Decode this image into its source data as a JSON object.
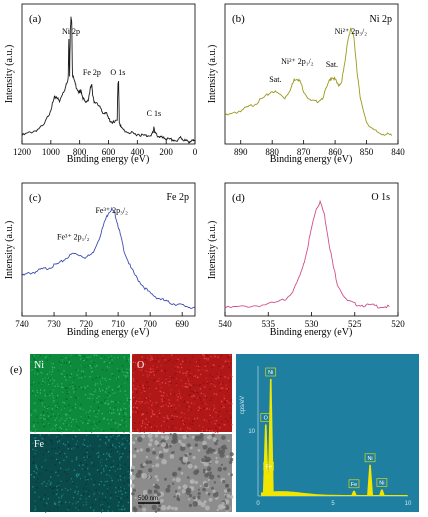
{
  "chart_data": [
    {
      "panel": "(a)",
      "type": "line",
      "title": "",
      "xlabel": "Binding energy (eV)",
      "ylabel": "Intensity (a.u.)",
      "xlim": [
        1200,
        0
      ],
      "xticks": [
        1200,
        1000,
        800,
        600,
        400,
        200,
        0
      ],
      "color": "#1a1a1a",
      "annotations": [
        {
          "text": "Ni 2p",
          "x": 860
        },
        {
          "text": "Fe 2p",
          "x": 715
        },
        {
          "text": "O 1s",
          "x": 535
        },
        {
          "text": "C 1s",
          "x": 285
        }
      ],
      "x": [
        1200,
        1150,
        1100,
        1050,
        1010,
        990,
        975,
        960,
        940,
        920,
        900,
        880,
        875,
        870,
        865,
        860,
        855,
        850,
        835,
        820,
        800,
        790,
        780,
        760,
        740,
        725,
        715,
        710,
        700,
        680,
        660,
        640,
        620,
        600,
        580,
        560,
        540,
        535,
        530,
        525,
        510,
        480,
        450,
        420,
        390,
        360,
        330,
        300,
        290,
        285,
        280,
        260,
        240,
        220,
        200,
        180,
        150,
        120,
        100,
        80,
        60,
        40,
        20,
        0
      ],
      "y": [
        0.06,
        0.08,
        0.1,
        0.13,
        0.22,
        0.28,
        0.33,
        0.34,
        0.3,
        0.36,
        0.4,
        0.46,
        0.76,
        0.48,
        0.82,
        0.9,
        0.86,
        0.5,
        0.44,
        0.4,
        0.36,
        0.38,
        0.34,
        0.29,
        0.32,
        0.4,
        0.42,
        0.36,
        0.29,
        0.3,
        0.26,
        0.22,
        0.23,
        0.18,
        0.16,
        0.15,
        0.17,
        0.42,
        0.44,
        0.16,
        0.11,
        0.09,
        0.08,
        0.07,
        0.07,
        0.06,
        0.06,
        0.07,
        0.08,
        0.13,
        0.08,
        0.06,
        0.05,
        0.04,
        0.04,
        0.03,
        0.03,
        0.02,
        0.05,
        0.03,
        0.02,
        0.02,
        0.02,
        0.02
      ]
    },
    {
      "panel": "(b)",
      "type": "line",
      "title": "Ni 2p",
      "xlabel": "Binding energy (eV)",
      "ylabel": "Intensity (a.u.)",
      "xlim": [
        895,
        840
      ],
      "xticks": [
        890,
        880,
        870,
        860,
        850,
        840
      ],
      "color": "#9a9a1e",
      "annotations": [
        {
          "text": "Sat.",
          "x": 879
        },
        {
          "text": "Ni²⁺ 2p₁/₂",
          "x": 872
        },
        {
          "text": "Sat.",
          "x": 861
        },
        {
          "text": "Ni²⁺ 2p₃/₂",
          "x": 855
        }
      ],
      "x": [
        895,
        892,
        890,
        888,
        886,
        884,
        882,
        880,
        878,
        876,
        874,
        873,
        872,
        871,
        870,
        868,
        866,
        864,
        862,
        861,
        860,
        859,
        858,
        857,
        856,
        855,
        854,
        853,
        852,
        850,
        848,
        846,
        844,
        842
      ],
      "y": [
        0.2,
        0.22,
        0.24,
        0.26,
        0.28,
        0.31,
        0.34,
        0.38,
        0.36,
        0.33,
        0.4,
        0.46,
        0.47,
        0.44,
        0.38,
        0.31,
        0.3,
        0.33,
        0.44,
        0.48,
        0.46,
        0.42,
        0.44,
        0.56,
        0.74,
        0.82,
        0.76,
        0.52,
        0.32,
        0.16,
        0.1,
        0.08,
        0.07,
        0.06
      ]
    },
    {
      "panel": "(c)",
      "type": "line",
      "title": "Fe 2p",
      "xlabel": "Binding energy (eV)",
      "ylabel": "Intensity (a.u.)",
      "xlim": [
        740,
        686
      ],
      "xticks": [
        740,
        730,
        720,
        710,
        700,
        690
      ],
      "color": "#3d4fb0",
      "annotations": [
        {
          "text": "Fe³⁺ 2p₁/₂",
          "x": 724
        },
        {
          "text": "Fe³⁺ 2p₃/₂",
          "x": 712
        }
      ],
      "x": [
        740,
        738,
        736,
        734,
        732,
        730,
        728,
        726,
        724,
        722,
        720,
        718,
        716,
        714,
        713,
        712,
        711,
        710,
        709,
        708,
        706,
        704,
        702,
        700,
        698,
        696,
        694,
        692,
        690,
        688,
        686
      ],
      "y": [
        0.3,
        0.32,
        0.33,
        0.35,
        0.36,
        0.38,
        0.4,
        0.44,
        0.47,
        0.46,
        0.44,
        0.47,
        0.58,
        0.72,
        0.78,
        0.8,
        0.77,
        0.68,
        0.58,
        0.48,
        0.36,
        0.28,
        0.22,
        0.17,
        0.14,
        0.12,
        0.1,
        0.09,
        0.08,
        0.07,
        0.06
      ]
    },
    {
      "panel": "(d)",
      "type": "line",
      "title": "O 1s",
      "xlabel": "Binding energy (eV)",
      "ylabel": "Intensity (a.u.)",
      "xlim": [
        540,
        520
      ],
      "xticks": [
        540,
        535,
        530,
        525,
        520
      ],
      "color": "#d0508c",
      "annotations": [],
      "x": [
        540,
        538,
        536,
        534,
        533,
        532,
        531,
        530.5,
        530,
        529.5,
        529,
        528.5,
        528,
        527.5,
        527,
        526,
        525,
        524,
        523,
        522,
        521
      ],
      "y": [
        0.06,
        0.07,
        0.08,
        0.1,
        0.13,
        0.2,
        0.36,
        0.5,
        0.66,
        0.8,
        0.86,
        0.76,
        0.56,
        0.38,
        0.24,
        0.12,
        0.09,
        0.08,
        0.08,
        0.07,
        0.07
      ]
    },
    {
      "panel": "(e)",
      "type": "bar",
      "title": "",
      "xlabel": "",
      "ylabel": "cps/eV",
      "xlim": [
        0,
        10
      ],
      "ylim": [
        0,
        20
      ],
      "xticks": [
        0,
        5,
        10
      ],
      "yticks": [
        10
      ],
      "peaks": [
        {
          "label": "O",
          "x": 0.52,
          "y": 11
        },
        {
          "label": "Ni",
          "x": 0.85,
          "y": 18
        },
        {
          "label": "Fe",
          "x": 0.71,
          "y": 3.5
        },
        {
          "label": "Fe",
          "x": 6.4,
          "y": 0.8
        },
        {
          "label": "Ni",
          "x": 7.47,
          "y": 4.8
        },
        {
          "label": "Ni",
          "x": 8.26,
          "y": 1.0
        }
      ]
    }
  ],
  "map_labels": {
    "ni": "Ni",
    "o": "O",
    "fe": "Fe"
  },
  "scale_bar": "500 nm",
  "colors": {
    "ni_map": "#0e8a3c",
    "o_map": "#b01818",
    "fe_map": "#0a5050",
    "sem": "#8c8c8c",
    "eds_bg": "#1e7fa0",
    "eds_peak": "#f0e600"
  }
}
